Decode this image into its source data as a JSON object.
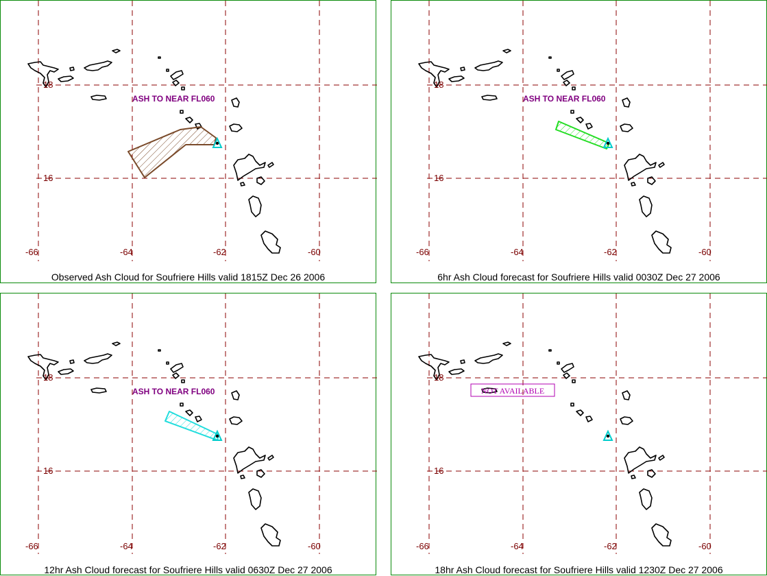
{
  "panels": [
    {
      "caption": "Observed Ash Cloud for Soufriere  Hills valid 1815Z Dec 26 2006",
      "note": "ASH TO NEAR FL060",
      "cloud_color": "#7a4a2a"
    },
    {
      "caption": "6hr Ash Cloud forecast for Soufriere  Hills valid 0030Z Dec 27 2006",
      "note": "ASH TO NEAR FL060",
      "cloud_color": "#22dd22"
    },
    {
      "caption": "12hr Ash Cloud forecast for Soufriere  Hills valid 0630Z Dec 27 2006",
      "note": "ASH TO NEAR FL060",
      "cloud_color": "#22dddd"
    },
    {
      "caption": "18hr Ash Cloud forecast for Soufriere  Hills valid 1230Z Dec 27 2006",
      "note": "NOT AVAILABLE",
      "cloud_color": ""
    }
  ],
  "lon_labels": [
    "-66",
    "-64",
    "-62",
    "-60"
  ],
  "lat_labels": [
    "18",
    "16"
  ],
  "colors": {
    "grid": "#8b0000",
    "frame": "#0a8a0a",
    "volcano": "#00cccc",
    "coast": "#000000"
  }
}
